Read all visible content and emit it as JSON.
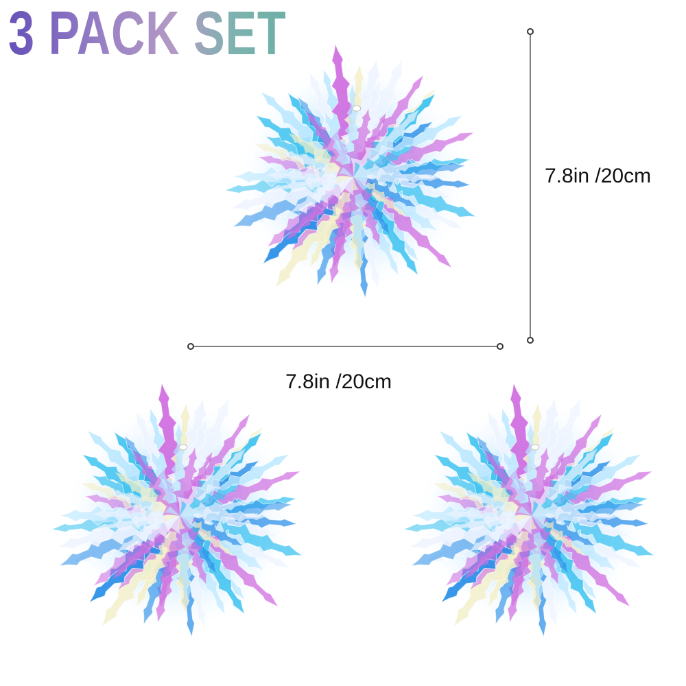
{
  "title": "3 PACK SET",
  "title_gradient": [
    "#6651b8",
    "#b39ac4",
    "#6cb0a6"
  ],
  "product": {
    "count": 3,
    "item": "iridescent snowflake hanging ball",
    "colors": [
      "#3ec3f0",
      "#2a8fe8",
      "#d070e0",
      "#eef4ff",
      "#f3efc9",
      "#b8e6ff"
    ]
  },
  "dimensions": {
    "height_label": "7.8in /20cm",
    "width_label": "7.8in /20cm"
  }
}
